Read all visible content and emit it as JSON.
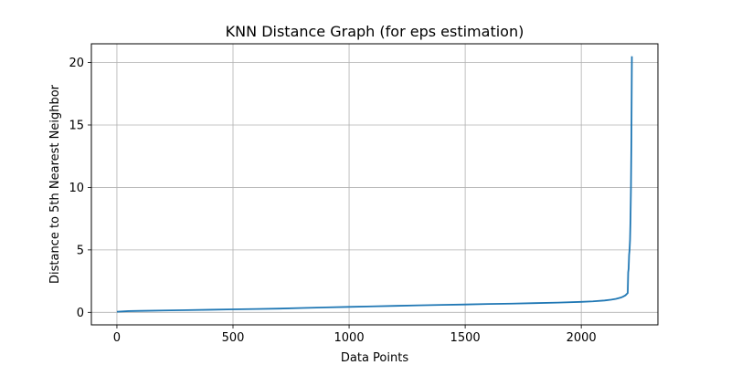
{
  "chart_data": {
    "type": "line",
    "title": "KNN Distance Graph (for eps estimation)",
    "xlabel": "Data Points",
    "ylabel": "Distance to 5th Nearest Neighbor",
    "xlim": [
      -110,
      2330
    ],
    "ylim": [
      -1.0,
      21.5
    ],
    "xticks": [
      0,
      500,
      1000,
      1500,
      2000
    ],
    "yticks": [
      0,
      5,
      10,
      15,
      20
    ],
    "grid": true,
    "legend": "none",
    "series": [
      {
        "color": "#1f77b4",
        "x": [
          0,
          50,
          100,
          200,
          300,
          400,
          500,
          600,
          700,
          800,
          900,
          1000,
          1100,
          1200,
          1300,
          1400,
          1500,
          1600,
          1700,
          1800,
          1900,
          2000,
          2050,
          2100,
          2130,
          2150,
          2170,
          2180,
          2190,
          2200,
          2202,
          2204,
          2206,
          2208,
          2210,
          2212,
          2214,
          2216,
          2218
        ],
        "y": [
          0.05,
          0.1,
          0.12,
          0.15,
          0.18,
          0.21,
          0.24,
          0.27,
          0.3,
          0.35,
          0.4,
          0.44,
          0.48,
          0.52,
          0.56,
          0.6,
          0.63,
          0.67,
          0.7,
          0.74,
          0.78,
          0.84,
          0.88,
          0.95,
          1.02,
          1.08,
          1.18,
          1.26,
          1.36,
          1.55,
          3.2,
          3.5,
          4.6,
          5.0,
          5.8,
          7.5,
          10.0,
          14.0,
          20.5
        ]
      }
    ]
  }
}
